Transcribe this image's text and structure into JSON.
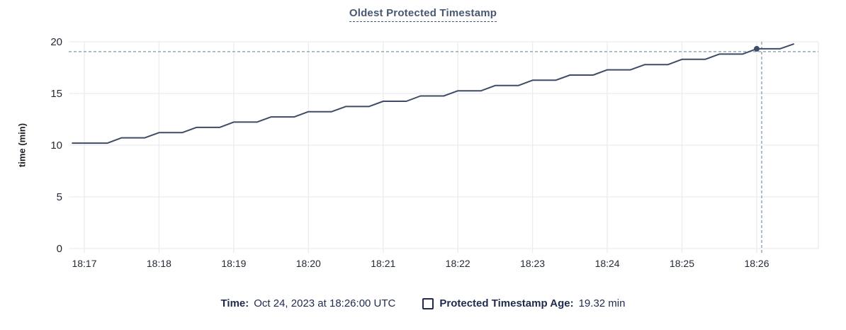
{
  "header": {
    "title": "Oldest Protected Timestamp"
  },
  "colors": {
    "line": "#3e4c66",
    "dot": "#3e4c66",
    "crosshair": "#92a9b8",
    "grid": "#ececec",
    "title_text": "#475872",
    "axis_text": "#242a35",
    "legend_text": "#1f2a4d"
  },
  "chart_data": {
    "type": "line",
    "title": "Oldest Protected Timestamp",
    "xlabel": "",
    "ylabel": "time (min)",
    "ylim": [
      0,
      20
    ],
    "y_ticks": [
      0,
      5,
      10,
      15,
      20
    ],
    "x_ticks": [
      "18:17",
      "18:18",
      "18:19",
      "18:20",
      "18:21",
      "18:22",
      "18:23",
      "18:24",
      "18:25",
      "18:26"
    ],
    "grid": true,
    "legend_position": "bottom",
    "x": [
      "18:16:50",
      "18:17:00",
      "18:17:30",
      "18:18:00",
      "18:18:30",
      "18:19:00",
      "18:19:30",
      "18:20:00",
      "18:20:30",
      "18:21:00",
      "18:21:30",
      "18:22:00",
      "18:22:30",
      "18:23:00",
      "18:23:30",
      "18:24:00",
      "18:24:30",
      "18:25:00",
      "18:25:30",
      "18:26:00",
      "18:26:30"
    ],
    "series": [
      {
        "name": "Protected Timestamp Age",
        "unit": "min",
        "values": [
          10.2,
          10.2,
          10.71,
          11.21,
          11.72,
          12.23,
          12.73,
          13.24,
          13.74,
          14.25,
          14.76,
          15.26,
          15.77,
          16.28,
          16.78,
          17.29,
          17.79,
          18.3,
          18.81,
          19.32,
          19.8
        ]
      }
    ],
    "highlight": {
      "x": "18:26:00",
      "value": 19.32
    }
  },
  "legend": {
    "time_label": "Time:",
    "time_value": "Oct 24, 2023 at 18:26:00 UTC",
    "series_label": "Protected Timestamp Age:",
    "series_value": "19.32 min"
  }
}
